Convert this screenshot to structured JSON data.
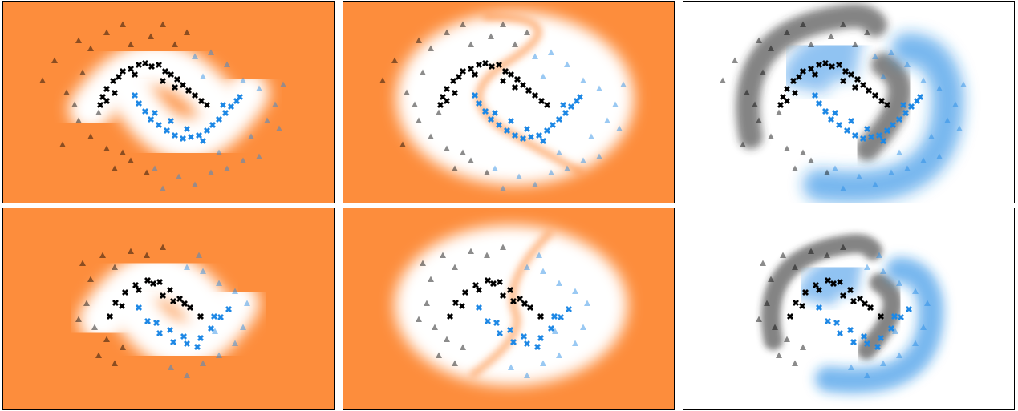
{
  "chart_data": [
    {
      "type": "scatter",
      "xlim": [
        0,
        414
      ],
      "ylim": [
        0,
        253
      ],
      "panel_backgrounds": [
        "#fd8d3c",
        "#fd8d3c",
        "#ffffff"
      ],
      "series": [
        {
          "color": "#000000",
          "marker": "x",
          "alpha": 1,
          "x": [
            122,
            125,
            130,
            138,
            145,
            150,
            160,
            170,
            178,
            186,
            195,
            203,
            210,
            218,
            225,
            232,
            240,
            248,
            255,
            130,
            165,
            200,
            140,
            215
          ],
          "y": [
            130,
            120,
            110,
            100,
            95,
            88,
            85,
            80,
            78,
            82,
            80,
            88,
            92,
            98,
            105,
            112,
            118,
            125,
            130,
            125,
            92,
            100,
            115,
            108
          ]
        },
        {
          "color": "#1e88e5",
          "marker": "x",
          "alpha": 1,
          "x": [
            165,
            170,
            178,
            185,
            195,
            205,
            215,
            225,
            235,
            245,
            255,
            262,
            270,
            278,
            285,
            292,
            296,
            190,
            230,
            250,
            210,
            275
          ],
          "y": [
            118,
            128,
            138,
            148,
            155,
            162,
            168,
            172,
            170,
            168,
            162,
            155,
            148,
            140,
            132,
            125,
            120,
            140,
            160,
            175,
            150,
            130
          ]
        },
        {
          "color": "#000000",
          "marker": "triangle",
          "alpha": 0.45,
          "x": [
            50,
            65,
            80,
            95,
            100,
            110,
            130,
            150,
            160,
            185,
            200,
            215,
            230,
            95,
            110,
            130,
            150,
            120,
            90,
            140,
            160,
            75,
            180
          ],
          "y": [
            100,
            75,
            115,
            50,
            90,
            60,
            40,
            30,
            55,
            45,
            30,
            55,
            40,
            150,
            170,
            185,
            190,
            140,
            130,
            210,
            200,
            180,
            215
          ]
        },
        {
          "color": "#1e88e5",
          "marker": "triangle",
          "alpha": 0.45,
          "x": [
            240,
            260,
            280,
            300,
            320,
            340,
            350,
            330,
            310,
            300,
            280,
            260,
            240,
            220,
            200,
            190,
            270,
            320,
            345,
            250
          ],
          "y": [
            70,
            65,
            80,
            100,
            110,
            130,
            105,
            150,
            170,
            200,
            210,
            215,
            230,
            220,
            235,
            210,
            190,
            195,
            160,
            95
          ]
        }
      ]
    },
    {
      "type": "scatter",
      "xlim": [
        0,
        414
      ],
      "ylim": [
        0,
        253
      ],
      "panel_backgrounds": [
        "#fd8d3c",
        "#fd8d3c",
        "#ffffff"
      ],
      "series": [
        {
          "color": "#000000",
          "marker": "x",
          "alpha": 1,
          "x": [
            134,
            141,
            153,
            166,
            181,
            196,
            209,
            221,
            234,
            247,
            170,
            200,
            149,
            213,
            188,
            227
          ],
          "y": [
            136,
            119,
            106,
            97,
            91,
            93,
            103,
            114,
            125,
            136,
            103,
            110,
            123,
            117,
            95,
            120
          ]
        },
        {
          "color": "#1e88e5",
          "marker": "x",
          "alpha": 1,
          "x": [
            170,
            181,
            196,
            213,
            230,
            247,
            260,
            272,
            282,
            192,
            226,
            243,
            209,
            264
          ],
          "y": [
            125,
            142,
            157,
            168,
            170,
            163,
            151,
            137,
            127,
            144,
            161,
            174,
            153,
            136
          ]
        },
        {
          "color": "#000000",
          "marker": "triangle",
          "alpha": 0.45,
          "x": [
            100,
            110,
            125,
            140,
            160,
            180,
            200,
            105,
            115,
            130,
            150,
            120,
            140,
            95
          ],
          "y": [
            70,
            90,
            60,
            75,
            55,
            60,
            50,
            120,
            150,
            165,
            175,
            185,
            195,
            140
          ]
        },
        {
          "color": "#1e88e5",
          "marker": "triangle",
          "alpha": 0.45,
          "x": [
            230,
            250,
            270,
            290,
            305,
            300,
            290,
            270,
            250,
            230,
            210,
            265,
            245
          ],
          "y": [
            75,
            80,
            95,
            105,
            120,
            150,
            170,
            185,
            195,
            210,
            200,
            155,
            60
          ]
        }
      ]
    }
  ]
}
